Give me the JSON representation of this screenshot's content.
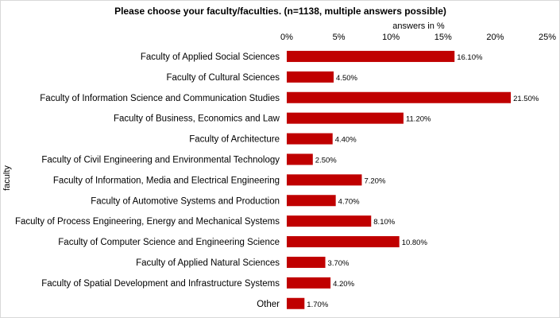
{
  "chart_data": {
    "type": "bar",
    "orientation": "horizontal",
    "title": "Please choose your faculty/faculties. (n=1138, multiple answers possible)",
    "xlabel": "answers in %",
    "ylabel": "faculty",
    "xlim": [
      0,
      25
    ],
    "xticks": [
      "0%",
      "5%",
      "10%",
      "15%",
      "20%",
      "25%"
    ],
    "grid": false,
    "bar_color": "#c00000",
    "categories": [
      "Faculty of Applied Social Sciences",
      "Faculty of Cultural Sciences",
      "Faculty of Information Science and Communication Studies",
      "Faculty of Business, Economics and Law",
      "Faculty of Architecture",
      "Faculty of Civil Engineering and Environmental Technology",
      "Faculty of Information, Media and Electrical Engineering",
      "Faculty of Automotive Systems and Production",
      "Faculty of Process Engineering, Energy and Mechanical Systems",
      "Faculty of Computer Science and Engineering Science",
      "Faculty of Applied Natural Sciences",
      "Faculty of Spatial Development and Infrastructure Systems",
      "Other"
    ],
    "values": [
      16.1,
      4.5,
      21.5,
      11.2,
      4.4,
      2.5,
      7.2,
      4.7,
      8.1,
      10.8,
      3.7,
      4.2,
      1.7
    ],
    "data_labels": [
      "16.10%",
      "4.50%",
      "21.50%",
      "11.20%",
      "4.40%",
      "2.50%",
      "7.20%",
      "4.70%",
      "8.10%",
      "10.80%",
      "3.70%",
      "4.20%",
      "1.70%"
    ]
  }
}
